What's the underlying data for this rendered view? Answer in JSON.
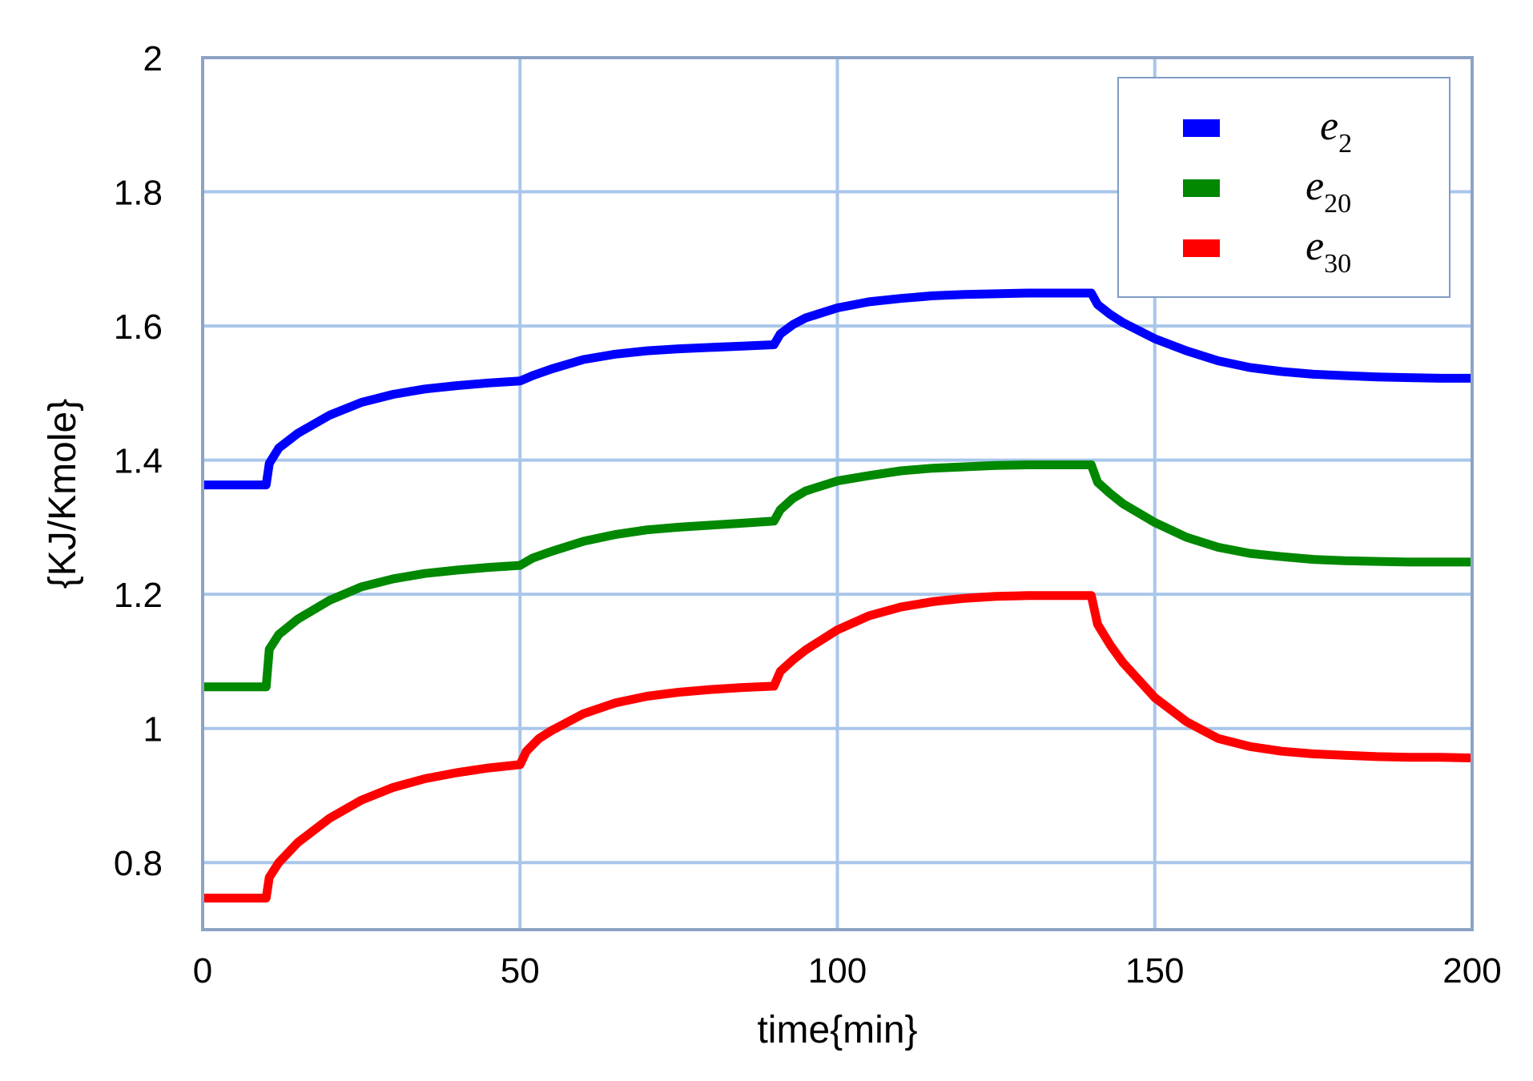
{
  "chart_data": {
    "type": "line",
    "xlabel": "time{min}",
    "ylabel": "{KJ/Kmole}",
    "xlim": [
      0,
      200
    ],
    "ylim": [
      0.7,
      2
    ],
    "xticks": [
      0,
      50,
      100,
      150,
      200
    ],
    "yticks": [
      0.8,
      1,
      1.2,
      1.4,
      1.6,
      1.8,
      2
    ],
    "xtick_labels": [
      "0",
      "50",
      "100",
      "150",
      "200"
    ],
    "ytick_labels": [
      "0.8",
      "1",
      "1.2",
      "1.4",
      "1.6",
      "1.8",
      "2"
    ],
    "grid": true,
    "legend_position": "top-right",
    "series": [
      {
        "name": "e2",
        "base": "e",
        "sub": "2",
        "color": "#0000ff",
        "x": [
          0,
          10,
          10.5,
          12,
          15,
          20,
          25,
          30,
          35,
          40,
          45,
          50,
          52,
          55,
          60,
          65,
          70,
          75,
          80,
          85,
          90,
          91,
          93,
          95,
          100,
          105,
          110,
          115,
          120,
          125,
          130,
          135,
          140,
          141,
          143,
          145,
          150,
          155,
          160,
          165,
          170,
          175,
          180,
          185,
          190,
          195,
          200
        ],
        "y": [
          1.363,
          1.363,
          1.395,
          1.418,
          1.44,
          1.467,
          1.486,
          1.498,
          1.506,
          1.511,
          1.515,
          1.518,
          1.526,
          1.536,
          1.55,
          1.558,
          1.563,
          1.566,
          1.568,
          1.57,
          1.572,
          1.588,
          1.602,
          1.612,
          1.627,
          1.636,
          1.641,
          1.645,
          1.647,
          1.648,
          1.649,
          1.649,
          1.649,
          1.632,
          1.617,
          1.605,
          1.581,
          1.563,
          1.548,
          1.538,
          1.532,
          1.528,
          1.526,
          1.524,
          1.523,
          1.522,
          1.522
        ]
      },
      {
        "name": "e20",
        "base": "e",
        "sub": "20",
        "color": "#008800",
        "x": [
          0,
          10,
          10.5,
          12,
          15,
          20,
          25,
          30,
          35,
          40,
          45,
          50,
          52,
          55,
          60,
          65,
          70,
          75,
          80,
          85,
          90,
          91,
          93,
          95,
          100,
          105,
          110,
          115,
          120,
          125,
          130,
          135,
          140,
          141,
          143,
          145,
          150,
          155,
          160,
          165,
          170,
          175,
          180,
          185,
          190,
          195,
          200
        ],
        "y": [
          1.062,
          1.062,
          1.118,
          1.14,
          1.163,
          1.191,
          1.211,
          1.223,
          1.231,
          1.236,
          1.24,
          1.243,
          1.254,
          1.264,
          1.279,
          1.289,
          1.296,
          1.3,
          1.303,
          1.306,
          1.309,
          1.326,
          1.343,
          1.354,
          1.369,
          1.377,
          1.384,
          1.388,
          1.39,
          1.392,
          1.393,
          1.393,
          1.393,
          1.367,
          1.35,
          1.335,
          1.307,
          1.285,
          1.27,
          1.261,
          1.256,
          1.252,
          1.25,
          1.249,
          1.248,
          1.248,
          1.248
        ]
      },
      {
        "name": "e30",
        "base": "e",
        "sub": "30",
        "color": "#ff0000",
        "x": [
          0,
          10,
          10.5,
          12,
          15,
          20,
          25,
          30,
          35,
          40,
          45,
          50,
          51,
          53,
          55,
          60,
          65,
          70,
          75,
          80,
          85,
          90,
          91,
          93,
          95,
          100,
          105,
          110,
          115,
          120,
          125,
          130,
          135,
          140,
          141,
          143,
          145,
          150,
          155,
          160,
          165,
          170,
          175,
          180,
          185,
          190,
          195,
          200
        ],
        "y": [
          0.747,
          0.747,
          0.778,
          0.8,
          0.83,
          0.866,
          0.893,
          0.912,
          0.925,
          0.934,
          0.941,
          0.946,
          0.966,
          0.985,
          0.997,
          1.022,
          1.038,
          1.048,
          1.054,
          1.058,
          1.061,
          1.063,
          1.085,
          1.102,
          1.117,
          1.147,
          1.168,
          1.181,
          1.189,
          1.194,
          1.197,
          1.198,
          1.198,
          1.198,
          1.155,
          1.124,
          1.098,
          1.046,
          1.01,
          0.985,
          0.973,
          0.966,
          0.962,
          0.96,
          0.958,
          0.957,
          0.957,
          0.956
        ]
      }
    ]
  }
}
